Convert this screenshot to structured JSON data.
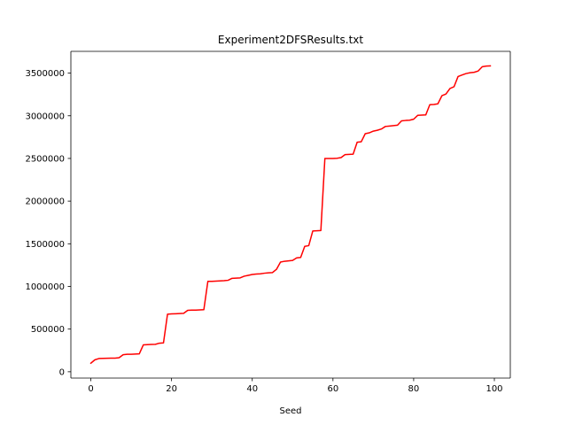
{
  "chart_data": {
    "type": "line",
    "title": "Experiment2DFSResults.txt",
    "xlabel": "Seed",
    "ylabel": "",
    "xlim": [
      -4.95,
      103.95
    ],
    "ylim": [
      -74000,
      3755000
    ],
    "xticks": [
      0,
      20,
      40,
      60,
      80,
      100
    ],
    "xtick_labels": [
      "0",
      "20",
      "40",
      "60",
      "80",
      "100"
    ],
    "yticks": [
      0,
      500000,
      1000000,
      1500000,
      2000000,
      2500000,
      3000000,
      3500000
    ],
    "ytick_labels": [
      "0",
      "500000",
      "1000000",
      "1500000",
      "2000000",
      "2500000",
      "3000000",
      "3500000"
    ],
    "grid": false,
    "legend": "none",
    "series": [
      {
        "color": "#ff0000",
        "x": [
          0,
          1,
          2,
          3,
          4,
          5,
          6,
          7,
          8,
          9,
          10,
          11,
          12,
          13,
          14,
          15,
          16,
          17,
          18,
          19,
          20,
          21,
          22,
          23,
          24,
          25,
          26,
          27,
          28,
          29,
          30,
          31,
          32,
          33,
          34,
          35,
          36,
          37,
          38,
          39,
          40,
          41,
          42,
          43,
          44,
          45,
          46,
          47,
          48,
          49,
          50,
          51,
          52,
          53,
          54,
          55,
          56,
          57,
          58,
          59,
          60,
          61,
          62,
          63,
          64,
          65,
          66,
          67,
          68,
          69,
          70,
          71,
          72,
          73,
          74,
          75,
          76,
          77,
          78,
          79,
          80,
          81,
          82,
          83,
          84,
          85,
          86,
          87,
          88,
          89,
          90,
          91,
          92,
          93,
          94,
          95,
          96,
          97,
          98,
          99
        ],
        "values": [
          100000,
          140000,
          155000,
          157000,
          158000,
          160000,
          160000,
          165000,
          200000,
          205000,
          205000,
          207000,
          210000,
          315000,
          318000,
          320000,
          322000,
          335000,
          338000,
          675000,
          678000,
          680000,
          682000,
          685000,
          720000,
          722000,
          723000,
          725000,
          727000,
          1060000,
          1060000,
          1062000,
          1065000,
          1068000,
          1072000,
          1095000,
          1097000,
          1100000,
          1120000,
          1130000,
          1140000,
          1145000,
          1148000,
          1155000,
          1160000,
          1162000,
          1200000,
          1285000,
          1295000,
          1300000,
          1305000,
          1335000,
          1340000,
          1470000,
          1478000,
          1650000,
          1652000,
          1655000,
          2500000,
          2500000,
          2500000,
          2502000,
          2510000,
          2545000,
          2547000,
          2550000,
          2690000,
          2695000,
          2790000,
          2800000,
          2820000,
          2830000,
          2845000,
          2875000,
          2880000,
          2885000,
          2890000,
          2940000,
          2945000,
          2948000,
          2960000,
          3005000,
          3008000,
          3010000,
          3130000,
          3132000,
          3140000,
          3235000,
          3255000,
          3320000,
          3340000,
          3460000,
          3478000,
          3495000,
          3505000,
          3510000,
          3525000,
          3575000,
          3582000,
          3585000
        ]
      }
    ]
  }
}
